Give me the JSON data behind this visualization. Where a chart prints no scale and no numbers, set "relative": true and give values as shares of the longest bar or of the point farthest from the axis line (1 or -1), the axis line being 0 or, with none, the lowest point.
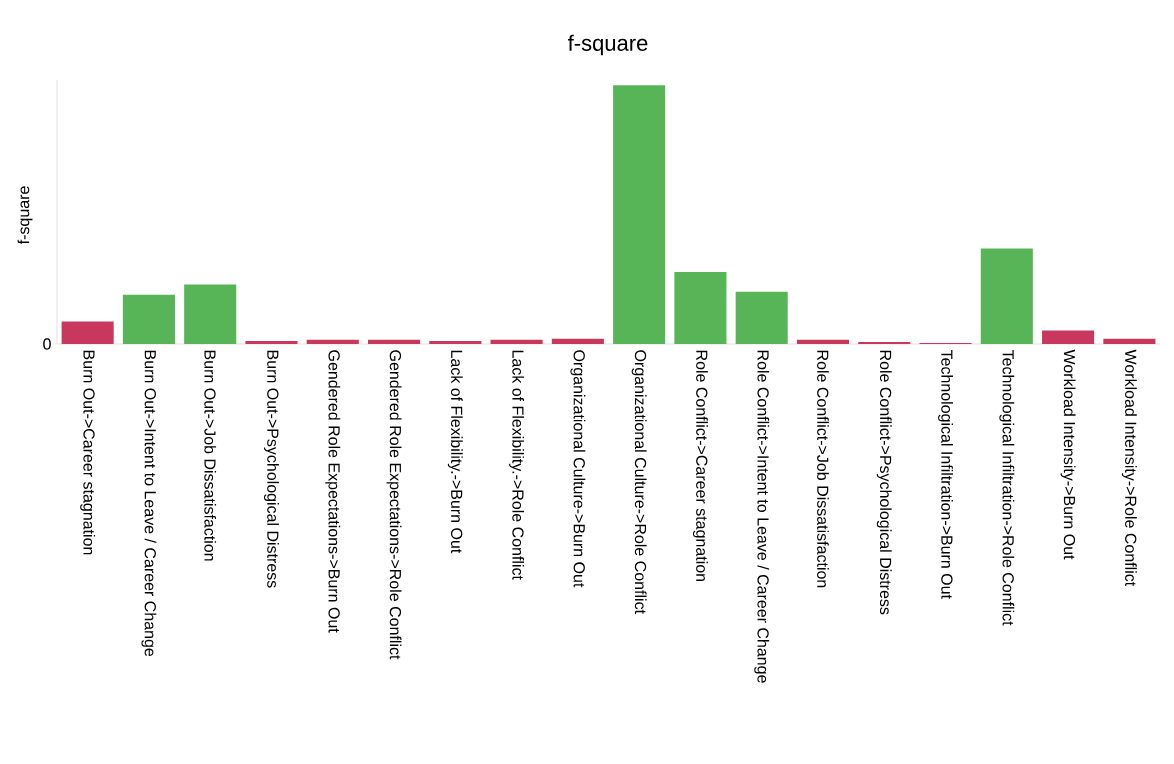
{
  "chart_data": {
    "type": "bar",
    "title": "f-square",
    "ylabel": "f-square",
    "relative": true,
    "categories": [
      "Burn Out->Career stagnation",
      "Burn Out->Intent to Leave / Career Change",
      "Burn Out->Job Dissatisfaction",
      "Burn Out->Psychological Distress",
      "Gendered Role Expectations->Burn Out",
      "Gendered Role Expectations->Role Conflict",
      "Lack of Flexibility.->Burn Out",
      "Lack of Flexibility.->Role Conflict",
      "Organizational Culture->Burn Out",
      "Organizational Culture->Role Conflict",
      "Role Conflict->Career stagnation",
      "Role Conflict->Intent to Leave / Career Change",
      "Role Conflict->Job Dissatisfaction",
      "Role Conflict->Psychological Distress",
      "Technological Infiltration->Burn Out",
      "Technological Infiltration->Role Conflict",
      "Workload Intensity->Burn Out",
      "Workload Intensity->Role Conflict"
    ],
    "values": [
      0.087,
      0.19,
      0.23,
      0.012,
      0.016,
      0.016,
      0.012,
      0.016,
      0.02,
      1,
      0.278,
      0.202,
      0.016,
      0.008,
      0.004,
      0.369,
      0.052,
      0.02
    ],
    "colors": [
      "#c8385e",
      "#57b557",
      "#57b557",
      "#c8385e",
      "#c8385e",
      "#c8385e",
      "#c8385e",
      "#c8385e",
      "#c8385e",
      "#57b557",
      "#57b557",
      "#57b557",
      "#c8385e",
      "#c8385e",
      "#c8385e",
      "#57b557",
      "#c8385e",
      "#c8385e"
    ],
    "annotations": [
      "0"
    ]
  }
}
